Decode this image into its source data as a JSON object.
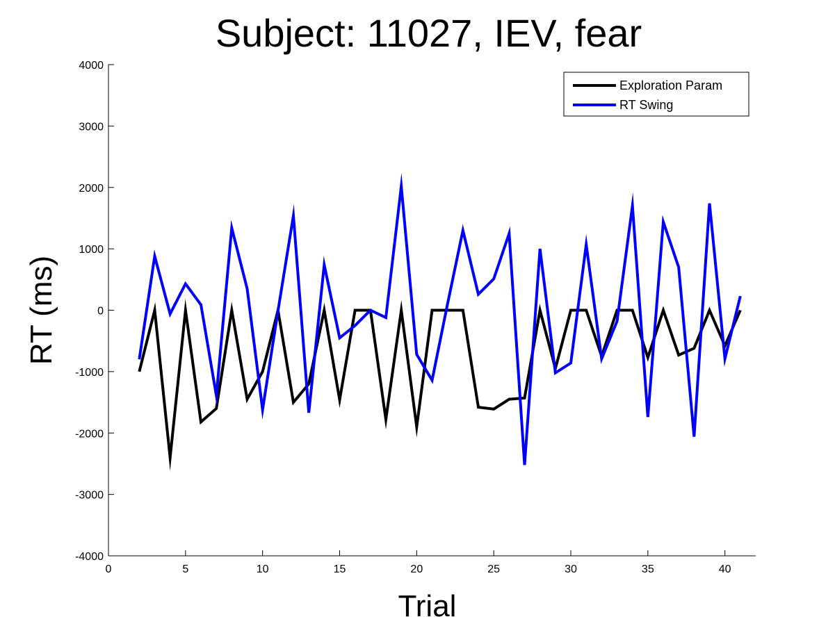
{
  "chart_data": {
    "type": "line",
    "title": "Subject: 11027, IEV, fear",
    "xlabel": "Trial",
    "ylabel": "RT (ms)",
    "xlim": [
      0,
      42
    ],
    "ylim": [
      -4000,
      4000
    ],
    "xticks": [
      0,
      5,
      10,
      15,
      20,
      25,
      30,
      35,
      40
    ],
    "yticks": [
      -4000,
      -3000,
      -2000,
      -1000,
      0,
      1000,
      2000,
      3000,
      4000
    ],
    "grid": false,
    "legend_position": "top-right",
    "x": [
      2,
      3,
      4,
      5,
      6,
      7,
      8,
      9,
      10,
      11,
      12,
      13,
      14,
      15,
      16,
      17,
      18,
      19,
      20,
      21,
      22,
      23,
      24,
      25,
      26,
      27,
      28,
      29,
      30,
      31,
      32,
      33,
      34,
      35,
      36,
      37,
      38,
      39,
      40,
      41
    ],
    "series": [
      {
        "name": "Exploration Param",
        "color": "#000000",
        "values": [
          -1000,
          0,
          -2400,
          0,
          -1820,
          -1600,
          0,
          -1450,
          -1000,
          0,
          -1500,
          -1200,
          0,
          -1460,
          0,
          0,
          -1780,
          0,
          -1900,
          0,
          0,
          0,
          -1580,
          -1610,
          -1450,
          -1430,
          0,
          -950,
          0,
          0,
          -750,
          0,
          0,
          -770,
          0,
          -730,
          -620,
          0,
          -580,
          0
        ]
      },
      {
        "name": "RT Swing",
        "color": "#0000ff",
        "values": [
          -800,
          880,
          -60,
          430,
          90,
          -1390,
          1340,
          350,
          -1620,
          -10,
          1540,
          -1670,
          740,
          -450,
          -250,
          0,
          -120,
          2020,
          -720,
          -1140,
          100,
          1300,
          260,
          510,
          1250,
          -2520,
          1000,
          -1020,
          -860,
          1070,
          -790,
          -180,
          1700,
          -1740,
          1440,
          700,
          -2060,
          1740,
          -790,
          230
        ]
      }
    ]
  }
}
